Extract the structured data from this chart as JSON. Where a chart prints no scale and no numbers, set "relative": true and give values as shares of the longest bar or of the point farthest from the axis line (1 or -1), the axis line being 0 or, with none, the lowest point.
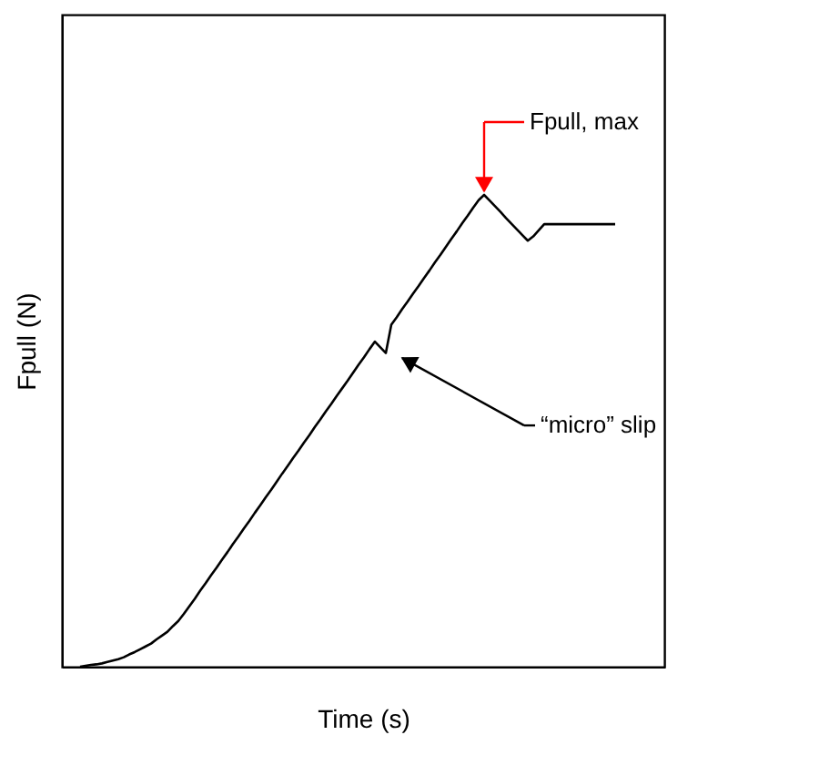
{
  "chart_data": {
    "type": "line",
    "relative": true,
    "xlabel": "Time (s)",
    "ylabel": "Fpull (N)",
    "categories": [
      null,
      null,
      null,
      null,
      null,
      null,
      null,
      null,
      null,
      null,
      null,
      null,
      null,
      null,
      null,
      null,
      null,
      null,
      null,
      null,
      null,
      null,
      null,
      null,
      null,
      null,
      null,
      null,
      null,
      null,
      null,
      null,
      null,
      null,
      null,
      null,
      null,
      null,
      null,
      null,
      null,
      null,
      null,
      null,
      null,
      null,
      null,
      null,
      null,
      null,
      null,
      null,
      null,
      null,
      null,
      null,
      null,
      null,
      null,
      null,
      null,
      null,
      null,
      null,
      null,
      null,
      null,
      null,
      null,
      null,
      null,
      null,
      null,
      null,
      null,
      null,
      null,
      null,
      null,
      null,
      null,
      null,
      null,
      null,
      null,
      null,
      null,
      null,
      null,
      null,
      null,
      null,
      null,
      null,
      null,
      null,
      null,
      null,
      null
    ],
    "series": [
      {
        "color": "#000000",
        "values": [
          0,
          0.002,
          0.004,
          0.005,
          0.007,
          0.01,
          0.013,
          0.016,
          0.02,
          0.026,
          0.031,
          0.037,
          0.043,
          0.049,
          0.058,
          0.066,
          0.074,
          0.086,
          0.097,
          0.112,
          0.128,
          0.144,
          0.161,
          0.177,
          0.194,
          0.21,
          0.227,
          0.243,
          0.26,
          0.276,
          0.293,
          0.309,
          0.326,
          0.342,
          0.359,
          0.375,
          0.392,
          0.409,
          0.425,
          0.442,
          0.458,
          0.475,
          0.491,
          0.508,
          0.524,
          0.541,
          0.557,
          0.574,
          0.59,
          0.606,
          0.623,
          0.64,
          0.656,
          0.673,
          0.689,
          0.677,
          0.665,
          0.725,
          0.741,
          0.758,
          0.774,
          0.791,
          0.807,
          0.824,
          0.84,
          0.857,
          0.873,
          0.89,
          0.907,
          0.923,
          0.94,
          0.956,
          0.973,
          0.989,
          1,
          0.988,
          0.976,
          0.964,
          0.951,
          0.939,
          0.927,
          0.915,
          0.903,
          0.912,
          0.925,
          0.938,
          0.938,
          0.938,
          0.938,
          0.938,
          0.938,
          0.938,
          0.938,
          0.938,
          0.938,
          0.938,
          0.938,
          0.938,
          0.938
        ]
      }
    ],
    "tick_labels": false,
    "grid": false,
    "marker": "none",
    "line_style": "solid",
    "annotations": [
      "Fpull, max",
      "“micro” slip"
    ]
  }
}
